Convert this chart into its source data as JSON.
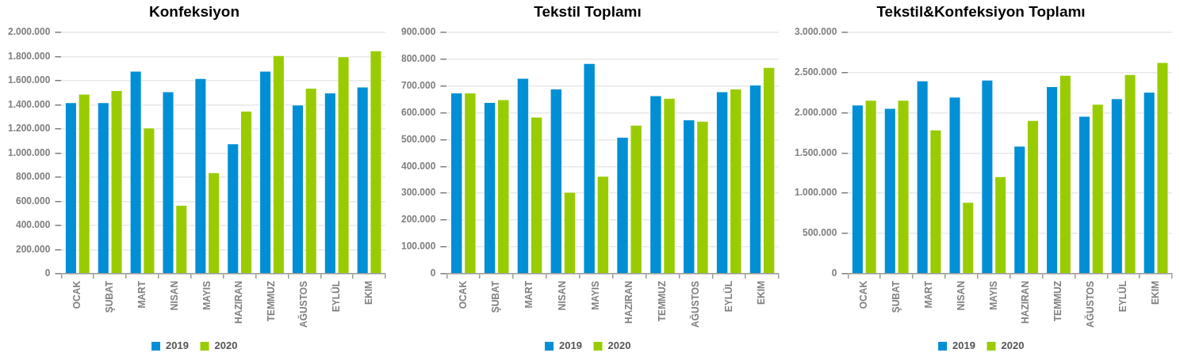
{
  "chart_data": [
    {
      "type": "bar",
      "title": "Konfeksiyon",
      "categories": [
        "OCAK",
        "ŞUBAT",
        "MART",
        "NISAN",
        "MAYIS",
        "HAZIRAN",
        "TEMMUZ",
        "AĞUSTOS",
        "EYLÜL",
        "EKIM"
      ],
      "series": [
        {
          "name": "2019",
          "color": "#008fd5",
          "values": [
            1420000,
            1420000,
            1680000,
            1510000,
            1620000,
            1080000,
            1680000,
            1400000,
            1500000,
            1550000
          ]
        },
        {
          "name": "2020",
          "color": "#99cc00",
          "values": [
            1490000,
            1520000,
            1210000,
            570000,
            840000,
            1350000,
            1810000,
            1540000,
            1800000,
            1850000
          ]
        }
      ],
      "ylim": [
        0,
        2000000
      ],
      "yticks": [
        {
          "value": 0,
          "label": "0"
        },
        {
          "value": 200000,
          "label": "200.000"
        },
        {
          "value": 400000,
          "label": "400.000"
        },
        {
          "value": 600000,
          "label": "600.000"
        },
        {
          "value": 800000,
          "label": "800.000"
        },
        {
          "value": 1000000,
          "label": "1.000.000"
        },
        {
          "value": 1200000,
          "label": "1.200.000"
        },
        {
          "value": 1400000,
          "label": "1.400.000"
        },
        {
          "value": 1600000,
          "label": "1.600.000"
        },
        {
          "value": 1800000,
          "label": "1.800.000"
        },
        {
          "value": 2000000,
          "label": "2.000.000"
        }
      ],
      "grid": "y",
      "legend": "bottom"
    },
    {
      "type": "bar",
      "title": "Tekstil Toplamı",
      "categories": [
        "OCAK",
        "ŞUBAT",
        "MART",
        "NISAN",
        "MAYIS",
        "HAZIRAN",
        "TEMMUZ",
        "AĞUSTOS",
        "EYLÜL",
        "EKIM"
      ],
      "series": [
        {
          "name": "2019",
          "color": "#008fd5",
          "values": [
            675000,
            640000,
            730000,
            690000,
            785000,
            510000,
            665000,
            575000,
            680000,
            705000
          ]
        },
        {
          "name": "2020",
          "color": "#99cc00",
          "values": [
            675000,
            650000,
            585000,
            305000,
            365000,
            555000,
            655000,
            570000,
            690000,
            770000
          ]
        }
      ],
      "ylim": [
        0,
        900000
      ],
      "yticks": [
        {
          "value": 0,
          "label": "0"
        },
        {
          "value": 100000,
          "label": "100.000"
        },
        {
          "value": 200000,
          "label": "200.000"
        },
        {
          "value": 300000,
          "label": "300.000"
        },
        {
          "value": 400000,
          "label": "400.000"
        },
        {
          "value": 500000,
          "label": "500.000"
        },
        {
          "value": 600000,
          "label": "600.000"
        },
        {
          "value": 700000,
          "label": "700.000"
        },
        {
          "value": 800000,
          "label": "800.000"
        },
        {
          "value": 900000,
          "label": "900.000"
        }
      ],
      "grid": "y",
      "legend": "bottom"
    },
    {
      "type": "bar",
      "title": "Tekstil&Konfeksiyon Toplamı",
      "categories": [
        "OCAK",
        "ŞUBAT",
        "MART",
        "NISAN",
        "MAYIS",
        "HAZIRAN",
        "TEMMUZ",
        "AĞUSTOS",
        "EYLÜL",
        "EKIM"
      ],
      "series": [
        {
          "name": "2019",
          "color": "#008fd5",
          "values": [
            2100000,
            2060000,
            2400000,
            2200000,
            2410000,
            1590000,
            2330000,
            1960000,
            2180000,
            2260000
          ]
        },
        {
          "name": "2020",
          "color": "#99cc00",
          "values": [
            2160000,
            2160000,
            1790000,
            890000,
            1210000,
            1910000,
            2470000,
            2110000,
            2480000,
            2630000
          ]
        }
      ],
      "ylim": [
        0,
        3000000
      ],
      "yticks": [
        {
          "value": 0,
          "label": "0"
        },
        {
          "value": 500000,
          "label": "500.000"
        },
        {
          "value": 1000000,
          "label": "1.000.000"
        },
        {
          "value": 1500000,
          "label": "1.500.000"
        },
        {
          "value": 2000000,
          "label": "2.000.000"
        },
        {
          "value": 2500000,
          "label": "2.500.000"
        },
        {
          "value": 3000000,
          "label": "3.000.000"
        }
      ],
      "grid": "y",
      "legend": "bottom"
    }
  ]
}
